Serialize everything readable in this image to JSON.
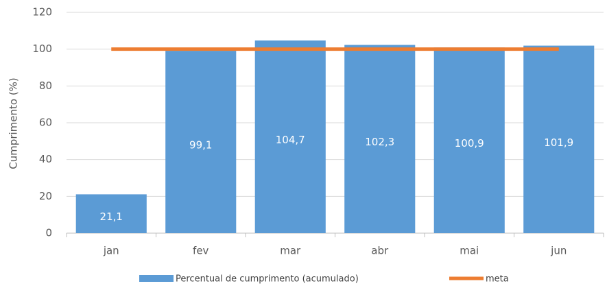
{
  "chart_data": {
    "type": "bar",
    "ylabel": "Cumprimento (%)",
    "categories": [
      "jan",
      "fev",
      "mar",
      "abr",
      "mai",
      "jun"
    ],
    "series": [
      {
        "name": "Percentual de cumprimento (acumulado)",
        "type": "bar",
        "color": "#5b9bd5",
        "values": [
          21.1,
          99.1,
          104.7,
          102.3,
          100.9,
          101.9
        ],
        "value_labels": [
          "21,1",
          "99,1",
          "104,7",
          "102,3",
          "100,9",
          "101,9"
        ]
      },
      {
        "name": "meta",
        "type": "line",
        "color": "#ed7d31",
        "values": [
          100,
          100,
          100,
          100,
          100,
          100
        ]
      }
    ],
    "ylim": [
      0,
      120
    ],
    "yticks": [
      0,
      20,
      40,
      60,
      80,
      100,
      120
    ],
    "grid": true,
    "legend": "bottom"
  }
}
